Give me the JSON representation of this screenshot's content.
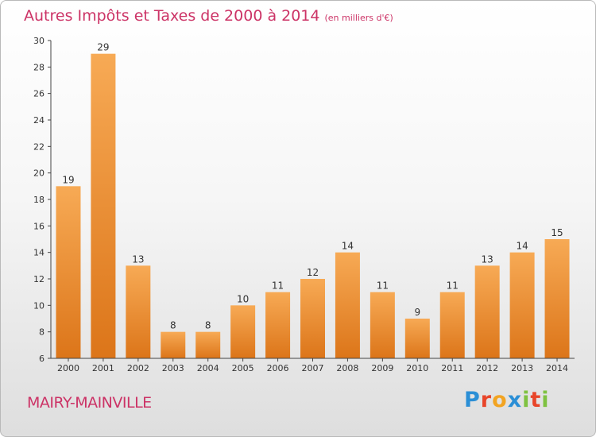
{
  "header": {
    "title": "Autres Impôts et Taxes de 2000 à 2014",
    "unit": "(en milliers d'€)"
  },
  "footer": {
    "commune": "MAIRY-MAINVILLE",
    "logo_letters": [
      "P",
      "r",
      "o",
      "x",
      "i",
      "t",
      "i"
    ],
    "logo_colors": [
      "#2b8fd6",
      "#e8452a",
      "#f2a422",
      "#2b8fd6",
      "#7fc241",
      "#e8452a",
      "#7fc241"
    ]
  },
  "colors": {
    "title": "#cc3366",
    "bar_light": "#f7aa55",
    "bar_dark": "#dc7519",
    "axis": "#444444"
  },
  "chart_data": {
    "type": "bar",
    "title": "Autres Impôts et Taxes de 2000 à 2014",
    "subtitle": "(en milliers d'€)",
    "categories": [
      "2000",
      "2001",
      "2002",
      "2003",
      "2004",
      "2005",
      "2006",
      "2007",
      "2008",
      "2009",
      "2010",
      "2011",
      "2012",
      "2013",
      "2014"
    ],
    "values": [
      19,
      29,
      13,
      8,
      8,
      10,
      11,
      12,
      14,
      11,
      9,
      11,
      13,
      14,
      15
    ],
    "ylim": [
      6,
      30
    ],
    "yticks": [
      6,
      8,
      10,
      12,
      14,
      16,
      18,
      20,
      22,
      24,
      26,
      28,
      30
    ],
    "xlabel": "",
    "ylabel": "",
    "grid": false,
    "legend": "none"
  }
}
